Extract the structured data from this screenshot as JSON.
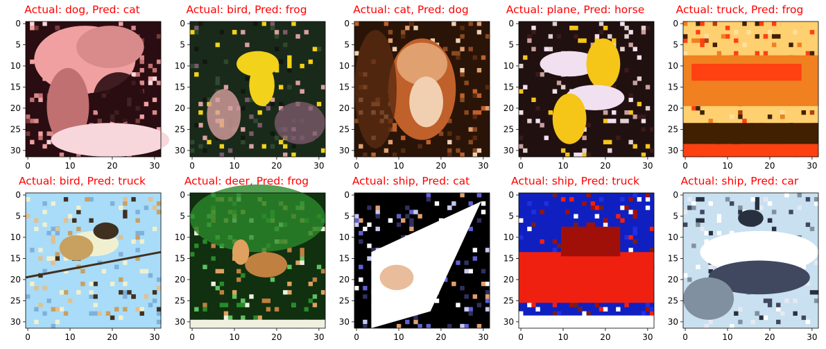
{
  "figure": {
    "image_extent": [
      0,
      32
    ],
    "x_ticks": [
      "0",
      "10",
      "20",
      "30"
    ],
    "y_ticks": [
      "0",
      "5",
      "10",
      "15",
      "20",
      "25",
      "30"
    ],
    "title_color": "#ff0000",
    "panels": [
      {
        "title": "Actual: dog, Pred: cat",
        "actual": "dog",
        "predicted": "cat",
        "scene": {
          "type": "dog",
          "bg": "#2a0d12",
          "colors": [
            "#f0a0a0",
            "#d98a8a",
            "#c07070",
            "#f7d7dc",
            "#7a3a3a"
          ]
        }
      },
      {
        "title": "Actual: bird, Pred: frog",
        "actual": "bird",
        "predicted": "frog",
        "scene": {
          "type": "bird-dark",
          "bg": "#1a2a1a",
          "colors": [
            "#f2d21a",
            "#2e4a2e",
            "#7a5a6a",
            "#d8a0a0",
            "#101810"
          ]
        }
      },
      {
        "title": "Actual: cat, Pred: dog",
        "actual": "cat",
        "predicted": "dog",
        "scene": {
          "type": "cat",
          "bg": "#2a1408",
          "colors": [
            "#c0602a",
            "#e0a070",
            "#f0d0b0",
            "#5a2a10",
            "#8a4a20"
          ]
        }
      },
      {
        "title": "Actual: plane, Pred: horse",
        "actual": "plane",
        "predicted": "horse",
        "scene": {
          "type": "plane",
          "bg": "#201010",
          "colors": [
            "#f0e0f0",
            "#f5c518",
            "#c8a0a0",
            "#3a1a1a",
            "#e0d0d0"
          ]
        }
      },
      {
        "title": "Actual: truck, Pred: frog",
        "actual": "truck",
        "predicted": "frog",
        "scene": {
          "type": "truck",
          "bg": "#ffd070",
          "colors": [
            "#f08020",
            "#ff4010",
            "#ffe0a0",
            "#402000",
            "#b04010"
          ]
        }
      },
      {
        "title": "Actual: bird, Pred: truck",
        "actual": "bird",
        "predicted": "truck",
        "scene": {
          "type": "bird-light",
          "bg": "#a8dcf8",
          "colors": [
            "#f0f0d0",
            "#c8a060",
            "#403020",
            "#80b0d8",
            "#e0c090"
          ]
        }
      },
      {
        "title": "Actual: deer, Pred: frog",
        "actual": "deer",
        "predicted": "frog",
        "scene": {
          "type": "deer",
          "bg": "#103010",
          "colors": [
            "#2a8a2a",
            "#60c060",
            "#c08040",
            "#e0a060",
            "#f0f0e0"
          ]
        }
      },
      {
        "title": "Actual: ship, Pred: cat",
        "actual": "ship",
        "predicted": "cat",
        "scene": {
          "type": "ship-white",
          "bg": "#000000",
          "colors": [
            "#ffffff",
            "#c8c8f0",
            "#6060d0",
            "#e0a070",
            "#303060"
          ]
        }
      },
      {
        "title": "Actual: ship, Pred: truck",
        "actual": "ship",
        "predicted": "truck",
        "scene": {
          "type": "ship-red",
          "bg": "#1020c0",
          "colors": [
            "#f02010",
            "#a01008",
            "#ffffff",
            "#2030e0",
            "#702020"
          ]
        }
      },
      {
        "title": "Actual: ship, Pred: car",
        "actual": "ship",
        "predicted": "car",
        "scene": {
          "type": "ship-grey",
          "bg": "#c8e0f0",
          "colors": [
            "#ffffff",
            "#404860",
            "#8090a0",
            "#e8e8f0",
            "#283040"
          ]
        }
      }
    ]
  }
}
